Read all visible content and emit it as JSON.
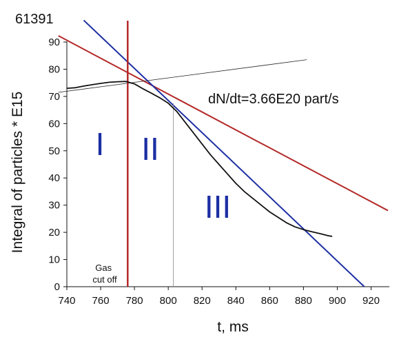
{
  "chart_data": {
    "type": "line",
    "title": "61391",
    "xlabel": "t, ms",
    "ylabel": "Integral of particles * E15",
    "xlim": [
      740,
      930
    ],
    "ylim": [
      0,
      90
    ],
    "x_ticks": [
      740,
      760,
      780,
      800,
      820,
      840,
      860,
      880,
      900,
      920
    ],
    "y_ticks": [
      0,
      10,
      20,
      30,
      40,
      50,
      60,
      70,
      80,
      90
    ],
    "grid": false,
    "series": [
      {
        "color": "#111111",
        "x": [
          740,
          745,
          750,
          755,
          760,
          765,
          770,
          775,
          780,
          785,
          790,
          795,
          800,
          805,
          810,
          815,
          820,
          825,
          830,
          835,
          840,
          845,
          850,
          855,
          860,
          865,
          870,
          875,
          880,
          885,
          890,
          895,
          897
        ],
        "y": [
          73.0,
          73.2,
          73.8,
          74.3,
          74.8,
          75.2,
          75.4,
          75.5,
          74.6,
          72.8,
          71.2,
          69.5,
          67.5,
          64.5,
          60.5,
          56.5,
          52.5,
          48.5,
          45.0,
          41.5,
          38.0,
          35.0,
          32.5,
          30.0,
          27.5,
          25.5,
          23.5,
          22.0,
          21.0,
          20.2,
          19.5,
          18.7,
          18.5
        ]
      }
    ],
    "fit_lines": [
      {
        "color": "#b42828",
        "x": [
          735,
          930
        ],
        "y": [
          92.3,
          28.0
        ]
      },
      {
        "color": "#1c2fa3",
        "x": [
          750,
          916
        ],
        "y": [
          98.0,
          0.0
        ]
      },
      {
        "color": "#222222",
        "x": [
          735,
          882
        ],
        "y": [
          71.5,
          83.5
        ]
      }
    ],
    "markers": [
      {
        "color": "#b42828",
        "x": 776,
        "label": "Gas\ncut off"
      },
      {
        "color": "#888888",
        "x": 803
      }
    ],
    "annotations": {
      "rate": "dN/dt=3.66E20 part/s",
      "regions": [
        "I",
        "II",
        "III"
      ]
    }
  }
}
